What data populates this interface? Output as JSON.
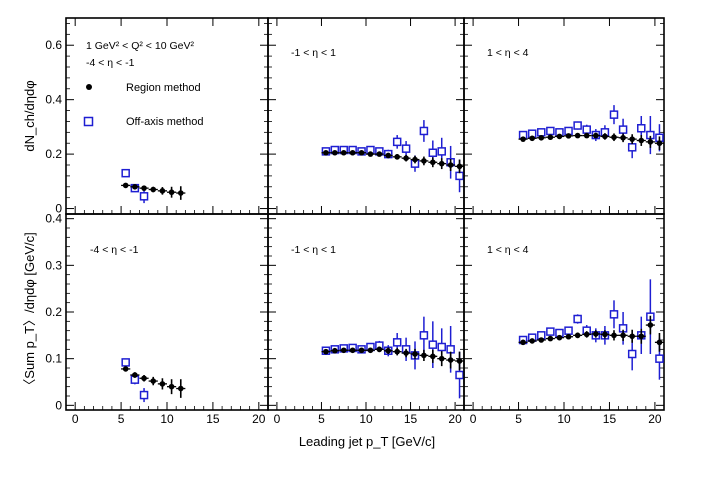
{
  "chart_data": {
    "type": "scatter",
    "xlabel": "Leading jet p_T [GeV/c]",
    "xlim": [
      -1,
      21
    ],
    "x_ticks": [
      0,
      5,
      10,
      15,
      20
    ],
    "kinematic_label_1": "1 GeV² < Q² < 10 GeV²",
    "kinematic_label_2": "-4 < η < -1",
    "legend": [
      "Region method",
      "Off-axis method"
    ],
    "colors": {
      "region": "#000000",
      "offaxis": "#1e1ed2"
    },
    "rows": [
      {
        "ylabel": "dN_ch/dηdφ",
        "ylim": [
          -0.02,
          0.7
        ],
        "y_ticks": [
          0,
          0.2,
          0.4,
          0.6
        ],
        "y_tick_labels": [
          "0",
          "0.2",
          "0.4",
          "0.6"
        ],
        "panels": [
          {
            "label": "",
            "region": {
              "x": [
                5.5,
                6.5,
                7.5,
                8.5,
                9.5,
                10.5,
                11.5
              ],
              "y": [
                0.085,
                0.08,
                0.075,
                0.07,
                0.065,
                0.06,
                0.057
              ],
              "err": [
                0.005,
                0.006,
                0.008,
                0.01,
                0.014,
                0.02,
                0.025
              ]
            },
            "offaxis": {
              "x": [
                5.5,
                6.5,
                7.5
              ],
              "y": [
                0.13,
                0.075,
                0.045
              ],
              "err": [
                0.008,
                0.012,
                0.025
              ]
            }
          },
          {
            "label": "-1 < η < 1",
            "region": {
              "x": [
                5.5,
                6.5,
                7.5,
                8.5,
                9.5,
                10.5,
                11.5,
                12.5,
                13.5,
                14.5,
                15.5,
                16.5,
                17.5,
                18.5,
                19.5,
                20.5
              ],
              "y": [
                0.205,
                0.205,
                0.205,
                0.205,
                0.205,
                0.2,
                0.2,
                0.195,
                0.19,
                0.185,
                0.18,
                0.175,
                0.17,
                0.165,
                0.16,
                0.155
              ],
              "err": [
                0.004,
                0.004,
                0.004,
                0.005,
                0.005,
                0.006,
                0.007,
                0.008,
                0.01,
                0.012,
                0.014,
                0.016,
                0.018,
                0.02,
                0.022,
                0.025
              ]
            },
            "offaxis": {
              "x": [
                5.5,
                6.5,
                7.5,
                8.5,
                9.5,
                10.5,
                11.5,
                12.5,
                13.5,
                14.5,
                15.5,
                16.5,
                17.5,
                18.5,
                19.5,
                20.5
              ],
              "y": [
                0.21,
                0.215,
                0.215,
                0.215,
                0.21,
                0.215,
                0.21,
                0.2,
                0.245,
                0.22,
                0.165,
                0.285,
                0.205,
                0.21,
                0.17,
                0.12
              ],
              "err": [
                0.006,
                0.007,
                0.008,
                0.009,
                0.01,
                0.012,
                0.014,
                0.016,
                0.025,
                0.028,
                0.03,
                0.04,
                0.045,
                0.05,
                0.06,
                0.06
              ]
            }
          },
          {
            "label": "1 < η < 4",
            "region": {
              "x": [
                5.5,
                6.5,
                7.5,
                8.5,
                9.5,
                10.5,
                11.5,
                12.5,
                13.5,
                14.5,
                15.5,
                16.5,
                17.5,
                18.5,
                19.5,
                20.5
              ],
              "y": [
                0.255,
                0.258,
                0.26,
                0.262,
                0.265,
                0.267,
                0.268,
                0.268,
                0.268,
                0.265,
                0.262,
                0.26,
                0.255,
                0.25,
                0.245,
                0.24
              ],
              "err": [
                0.004,
                0.004,
                0.005,
                0.005,
                0.006,
                0.006,
                0.007,
                0.008,
                0.01,
                0.012,
                0.014,
                0.016,
                0.018,
                0.02,
                0.022,
                0.025
              ]
            },
            "offaxis": {
              "x": [
                5.5,
                6.5,
                7.5,
                8.5,
                9.5,
                10.5,
                11.5,
                12.5,
                13.5,
                14.5,
                15.5,
                16.5,
                17.5,
                18.5,
                19.5,
                20.5
              ],
              "y": [
                0.27,
                0.275,
                0.28,
                0.285,
                0.28,
                0.285,
                0.305,
                0.29,
                0.27,
                0.28,
                0.345,
                0.29,
                0.225,
                0.295,
                0.27,
                0.26
              ],
              "err": [
                0.007,
                0.008,
                0.009,
                0.01,
                0.011,
                0.012,
                0.015,
                0.018,
                0.022,
                0.026,
                0.035,
                0.04,
                0.04,
                0.045,
                0.07,
                0.05
              ]
            }
          }
        ]
      },
      {
        "ylabel": "〈Sum p_T〉/dηdφ [GeV/c]",
        "ylim": [
          -0.01,
          0.41
        ],
        "y_ticks": [
          0,
          0.1,
          0.2,
          0.3,
          0.4
        ],
        "y_tick_labels": [
          "0",
          "0.1",
          "0.2",
          "0.3",
          "0.4"
        ],
        "panels": [
          {
            "label": "-4 < η < -1",
            "region": {
              "x": [
                5.5,
                6.5,
                7.5,
                8.5,
                9.5,
                10.5,
                11.5
              ],
              "y": [
                0.078,
                0.065,
                0.058,
                0.052,
                0.046,
                0.04,
                0.036
              ],
              "err": [
                0.005,
                0.006,
                0.007,
                0.009,
                0.012,
                0.016,
                0.02
              ]
            },
            "offaxis": {
              "x": [
                5.5,
                6.5,
                7.5
              ],
              "y": [
                0.092,
                0.055,
                0.022
              ],
              "err": [
                0.007,
                0.01,
                0.015
              ]
            }
          },
          {
            "label": "-1 < η < 1",
            "region": {
              "x": [
                5.5,
                6.5,
                7.5,
                8.5,
                9.5,
                10.5,
                11.5,
                12.5,
                13.5,
                14.5,
                15.5,
                16.5,
                17.5,
                18.5,
                19.5,
                20.5
              ],
              "y": [
                0.115,
                0.117,
                0.118,
                0.118,
                0.118,
                0.118,
                0.12,
                0.117,
                0.115,
                0.112,
                0.11,
                0.107,
                0.105,
                0.1,
                0.097,
                0.095
              ],
              "err": [
                0.003,
                0.003,
                0.004,
                0.004,
                0.005,
                0.005,
                0.006,
                0.007,
                0.008,
                0.009,
                0.011,
                0.012,
                0.014,
                0.016,
                0.018,
                0.02
              ]
            },
            "offaxis": {
              "x": [
                5.5,
                6.5,
                7.5,
                8.5,
                9.5,
                10.5,
                11.5,
                12.5,
                13.5,
                14.5,
                15.5,
                16.5,
                17.5,
                18.5,
                19.5,
                20.5
              ],
              "y": [
                0.117,
                0.12,
                0.122,
                0.123,
                0.12,
                0.125,
                0.128,
                0.117,
                0.135,
                0.12,
                0.107,
                0.15,
                0.13,
                0.125,
                0.12,
                0.065
              ],
              "err": [
                0.004,
                0.005,
                0.005,
                0.006,
                0.007,
                0.008,
                0.01,
                0.012,
                0.02,
                0.025,
                0.03,
                0.04,
                0.05,
                0.04,
                0.05,
                0.05
              ]
            }
          },
          {
            "label": "1 < η < 4",
            "region": {
              "x": [
                5.5,
                6.5,
                7.5,
                8.5,
                9.5,
                10.5,
                11.5,
                12.5,
                13.5,
                14.5,
                15.5,
                16.5,
                17.5,
                18.5,
                19.5,
                20.5
              ],
              "y": [
                0.135,
                0.138,
                0.14,
                0.143,
                0.145,
                0.147,
                0.15,
                0.152,
                0.153,
                0.152,
                0.15,
                0.15,
                0.148,
                0.148,
                0.172,
                0.135
              ],
              "err": [
                0.003,
                0.003,
                0.004,
                0.004,
                0.005,
                0.005,
                0.006,
                0.007,
                0.008,
                0.009,
                0.011,
                0.012,
                0.014,
                0.016,
                0.02,
                0.02
              ]
            },
            "offaxis": {
              "x": [
                5.5,
                6.5,
                7.5,
                8.5,
                9.5,
                10.5,
                11.5,
                12.5,
                13.5,
                14.5,
                15.5,
                16.5,
                17.5,
                18.5,
                19.5,
                20.5
              ],
              "y": [
                0.14,
                0.145,
                0.15,
                0.158,
                0.155,
                0.16,
                0.185,
                0.16,
                0.15,
                0.15,
                0.195,
                0.165,
                0.11,
                0.15,
                0.19,
                0.1
              ],
              "err": [
                0.004,
                0.005,
                0.005,
                0.006,
                0.006,
                0.007,
                0.01,
                0.012,
                0.015,
                0.02,
                0.03,
                0.035,
                0.035,
                0.04,
                0.08,
                0.045
              ]
            }
          }
        ]
      }
    ]
  }
}
